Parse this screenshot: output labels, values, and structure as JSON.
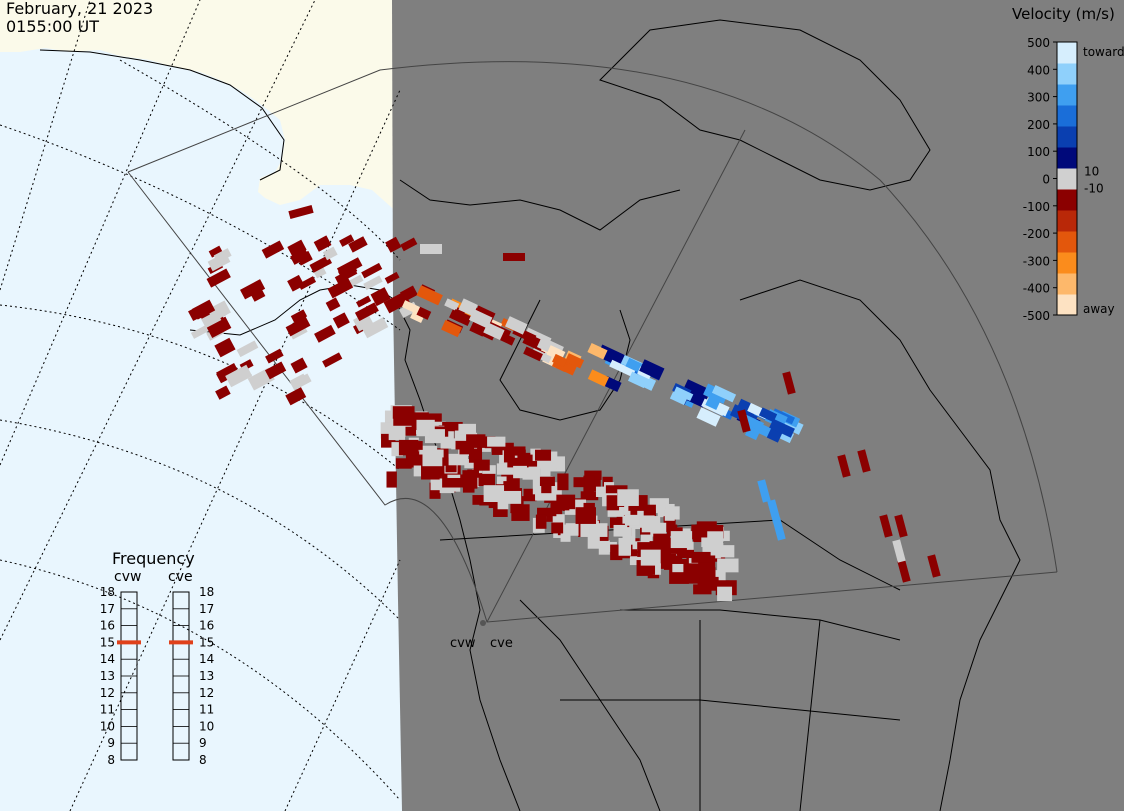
{
  "header": {
    "date": "February, 21 2023",
    "time": "0155:00 UT"
  },
  "colorbar": {
    "title": "Velocity (m/s)",
    "ticks": [
      "500",
      "400",
      "300",
      "200",
      "100",
      "0",
      "-100",
      "-200",
      "-300",
      "-400",
      "-500"
    ],
    "near_zero_labels": [
      "10",
      "-10"
    ],
    "toward_label": "toward",
    "away_label": "away",
    "colors": [
      "#fde2c2",
      "#fdb86b",
      "#fb8c1c",
      "#e3570c",
      "#b92808",
      "#8b0000",
      "#d0d0d0",
      "#00097a",
      "#0a3fb0",
      "#1a6ed9",
      "#3f9ff0",
      "#8fd0fb",
      "#d6eefd"
    ]
  },
  "frequency": {
    "title": "Frequency",
    "left_label": "cvw",
    "right_label": "cve",
    "scale": [
      "18",
      "17",
      "16",
      "15",
      "14",
      "13",
      "12",
      "11",
      "10",
      "9",
      "8"
    ],
    "left_value": 15,
    "right_value": 15,
    "marker_color": "#e0401a"
  },
  "radars": {
    "west": "cvw",
    "east": "cve"
  },
  "colors": {
    "ocean": "#e9f6fe",
    "land": "#fbfaea",
    "night_shade": "#7f7f7f",
    "away_dark": "#8b0000",
    "ground_scatter": "#cfcfcf"
  }
}
